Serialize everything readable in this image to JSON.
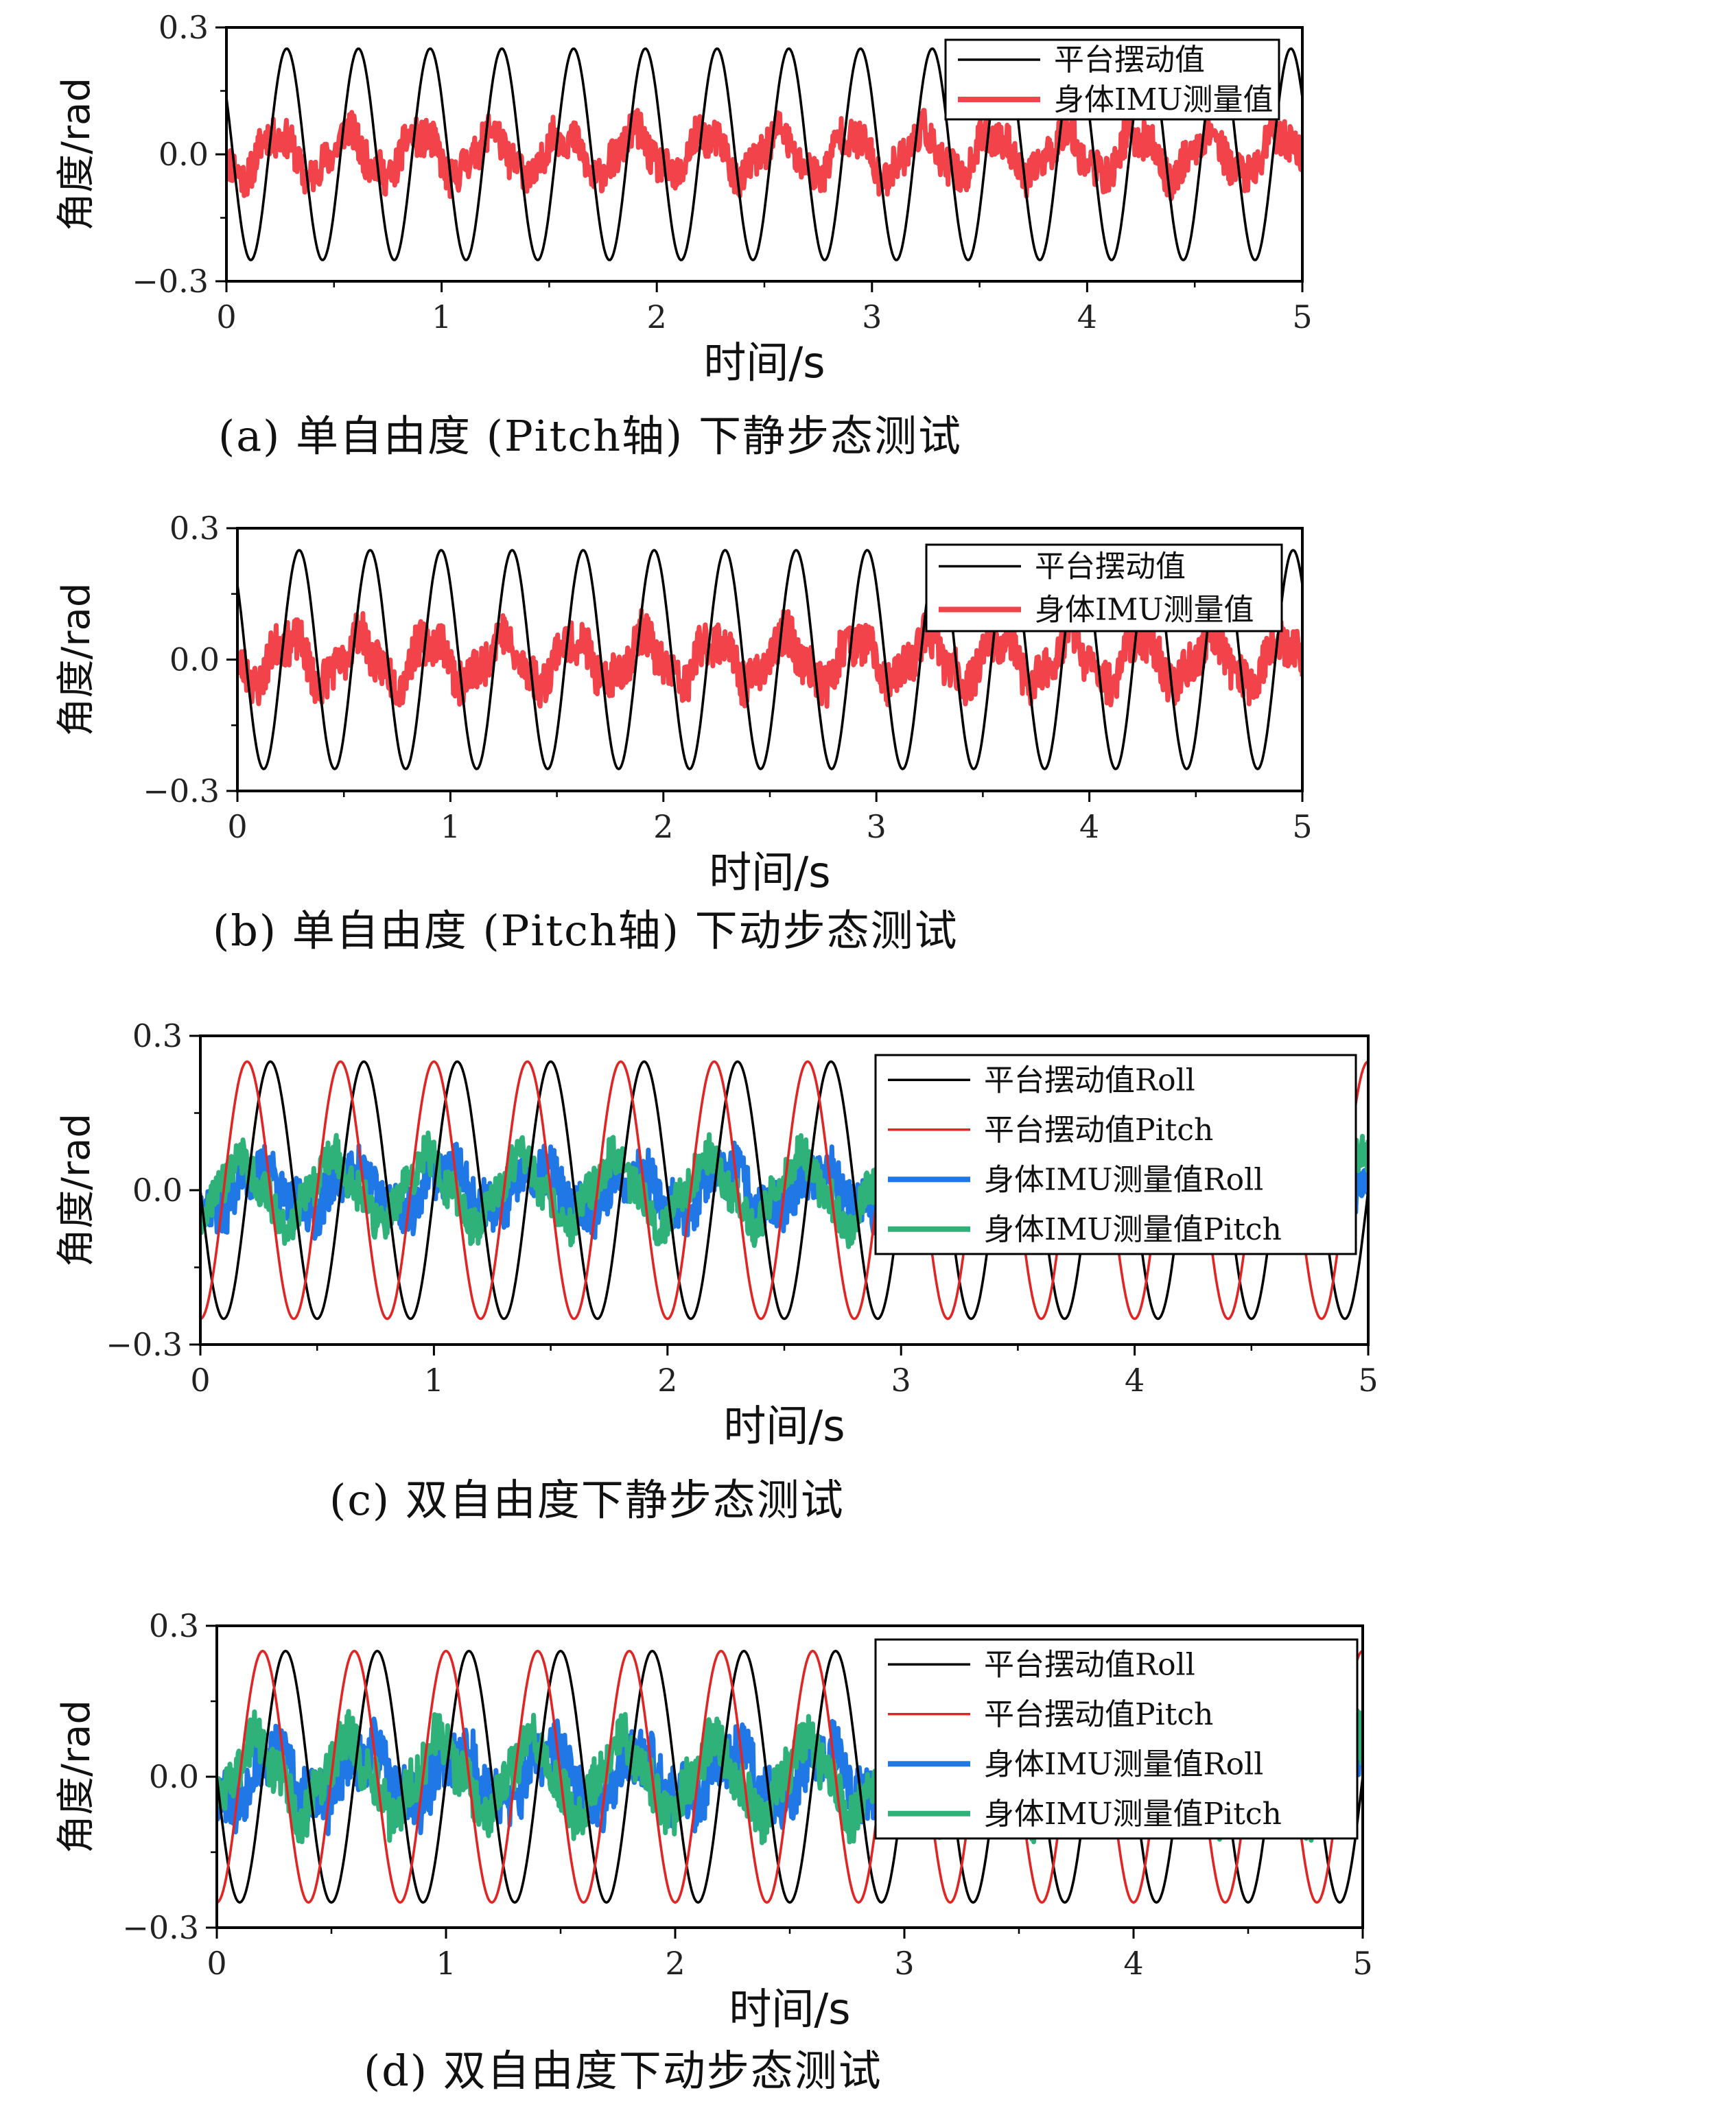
{
  "colors": {
    "platform_black": "#000000",
    "platform_red": "#e02525",
    "imu_red": "#f2434a",
    "imu_blue": "#1f78e6",
    "imu_green": "#2fb27a"
  },
  "chart_data": [
    {
      "type": "line",
      "id": "a",
      "caption": "(a) 单自由度 (Pitch轴) 下静步态测试",
      "xlabel": "时间/s",
      "ylabel": "角度/rad",
      "xlim": [
        0,
        5
      ],
      "ylim": [
        -0.3,
        0.3
      ],
      "xticks": [
        "0",
        "1",
        "2",
        "3",
        "4",
        "5"
      ],
      "yticks": [
        "0.3",
        "0.0",
        "−0.3"
      ],
      "legend_position": "top-right",
      "series": [
        {
          "name": "平台摆动值",
          "color": "#000000",
          "kind": "sine",
          "amplitude": 0.25,
          "frequency": 3,
          "phase_peak_t": 0.28
        },
        {
          "name": "身体IMU测量值",
          "color": "#f2434a",
          "kind": "noisy",
          "amplitude": 0.05,
          "frequency": 3,
          "phase_peak_t": 0.23,
          "noise": 0.045,
          "wide": true
        }
      ]
    },
    {
      "type": "line",
      "id": "b",
      "caption": "(b) 单自由度 (Pitch轴) 下动步态测试",
      "xlabel": "时间/s",
      "ylabel": "角度/rad",
      "xlim": [
        0,
        5
      ],
      "ylim": [
        -0.3,
        0.3
      ],
      "xticks": [
        "0",
        "1",
        "2",
        "3",
        "4",
        "5"
      ],
      "yticks": [
        "0.3",
        "0.0",
        "−0.3"
      ],
      "legend_position": "top-right",
      "series": [
        {
          "name": "平台摆动值",
          "color": "#000000",
          "kind": "sine",
          "amplitude": 0.25,
          "frequency": 3,
          "phase_peak_t": 0.29
        },
        {
          "name": "身体IMU测量值",
          "color": "#f2434a",
          "kind": "noisy",
          "amplitude": 0.05,
          "frequency": 3,
          "phase_peak_t": 0.24,
          "noise": 0.05,
          "wide": true
        }
      ]
    },
    {
      "type": "line",
      "id": "c",
      "caption": "(c) 双自由度下静步态测试",
      "xlabel": "时间/s",
      "ylabel": "角度/rad",
      "xlim": [
        0,
        5
      ],
      "ylim": [
        -0.3,
        0.3
      ],
      "xticks": [
        "0",
        "1",
        "2",
        "3",
        "4",
        "5"
      ],
      "yticks": [
        "0.3",
        "0.0",
        "−0.3"
      ],
      "legend_position": "top-right",
      "series": [
        {
          "name": "平台摆动值Roll",
          "color": "#000000",
          "kind": "sine",
          "amplitude": 0.25,
          "frequency": 2.5,
          "phase_peak_t": 0.3
        },
        {
          "name": "平台摆动值Pitch",
          "color": "#e02525",
          "kind": "sine",
          "amplitude": 0.25,
          "frequency": 2.5,
          "phase_peak_t": 0.2
        },
        {
          "name": "身体IMU测量值Roll",
          "color": "#1f78e6",
          "kind": "noisy",
          "amplitude": 0.04,
          "frequency": 2.5,
          "phase_peak_t": 0.25,
          "noise": 0.05,
          "wide": true
        },
        {
          "name": "身体IMU测量值Pitch",
          "color": "#2fb27a",
          "kind": "noisy",
          "amplitude": 0.06,
          "frequency": 2.5,
          "phase_peak_t": 0.17,
          "noise": 0.04,
          "wide": true
        }
      ]
    },
    {
      "type": "line",
      "id": "d",
      "caption": "(d) 双自由度下动步态测试",
      "xlabel": "时间/s",
      "ylabel": "角度/rad",
      "xlim": [
        0,
        5
      ],
      "ylim": [
        -0.3,
        0.3
      ],
      "xticks": [
        "0",
        "1",
        "2",
        "3",
        "4",
        "5"
      ],
      "yticks": [
        "0.3",
        "0.0",
        "−0.3"
      ],
      "legend_position": "top-right",
      "series": [
        {
          "name": "平台摆动值Roll",
          "color": "#000000",
          "kind": "sine",
          "amplitude": 0.25,
          "frequency": 2.5,
          "phase_peak_t": 0.3
        },
        {
          "name": "平台摆动值Pitch",
          "color": "#e02525",
          "kind": "sine",
          "amplitude": 0.25,
          "frequency": 2.5,
          "phase_peak_t": 0.2
        },
        {
          "name": "身体IMU测量值Roll",
          "color": "#1f78e6",
          "kind": "noisy",
          "amplitude": 0.05,
          "frequency": 2.5,
          "phase_peak_t": 0.25,
          "noise": 0.06,
          "wide": true
        },
        {
          "name": "身体IMU测量值Pitch",
          "color": "#2fb27a",
          "kind": "noisy",
          "amplitude": 0.07,
          "frequency": 2.5,
          "phase_peak_t": 0.17,
          "noise": 0.05,
          "wide": true
        }
      ]
    }
  ]
}
